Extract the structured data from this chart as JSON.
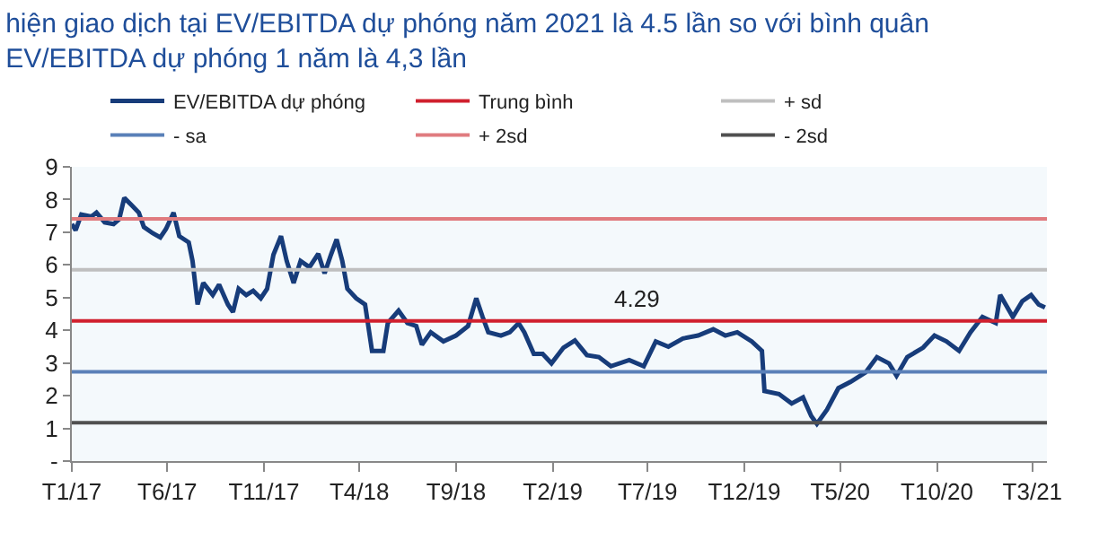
{
  "chart_data": {
    "type": "line",
    "title": "hiện giao dịch tại EV/EBITDA dự phóng năm 2021 là 4.5 lần so với bình quân\nEV/EBITDA dự phóng 1 năm là 4,3 lần",
    "xlim": [
      "2017-01-01",
      "2021-03-24"
    ],
    "xticks": [
      {
        "value": "2017-01-01",
        "label": "T1/17"
      },
      {
        "value": "2017-06-01",
        "label": "T6/17"
      },
      {
        "value": "2017-11-01",
        "label": "T11/17"
      },
      {
        "value": "2018-04-01",
        "label": "T4/18"
      },
      {
        "value": "2018-09-01",
        "label": "T9/18"
      },
      {
        "value": "2019-02-01",
        "label": "T2/19"
      },
      {
        "value": "2019-07-01",
        "label": "T7/19"
      },
      {
        "value": "2019-12-01",
        "label": "T12/19"
      },
      {
        "value": "2020-05-01",
        "label": "T5/20"
      },
      {
        "value": "2020-10-01",
        "label": "T10/20"
      },
      {
        "value": "2021-03-01",
        "label": "T3/21"
      }
    ],
    "ylim": [
      0,
      9
    ],
    "yticks": [
      {
        "value": 0,
        "label": "-"
      },
      1,
      2,
      3,
      4,
      5,
      6,
      7,
      8,
      9
    ],
    "grid": false,
    "legend": "top",
    "marker": "none",
    "line_style": "solid",
    "annotations": [
      {
        "text": "4.29",
        "x": "2019-06-15",
        "y": 4.29
      }
    ],
    "series": [
      {
        "name": "EV/EBITDA dự phóng",
        "color": "#173c7a",
        "x": [
          "2017-01-01",
          "2017-01-07",
          "2017-01-16",
          "2017-02-01",
          "2017-02-09",
          "2017-02-22",
          "2017-03-08",
          "2017-03-17",
          "2017-03-25",
          "2017-04-06",
          "2017-04-17",
          "2017-04-25",
          "2017-05-09",
          "2017-05-21",
          "2017-05-30",
          "2017-06-11",
          "2017-06-20",
          "2017-07-05",
          "2017-07-11",
          "2017-07-19",
          "2017-07-28",
          "2017-08-12",
          "2017-08-22",
          "2017-09-05",
          "2017-09-13",
          "2017-09-22",
          "2017-10-04",
          "2017-10-15",
          "2017-10-27",
          "2017-11-06",
          "2017-11-16",
          "2017-11-28",
          "2017-12-07",
          "2017-12-18",
          "2017-12-29",
          "2018-01-12",
          "2018-01-26",
          "2018-02-05",
          "2018-02-15",
          "2018-02-24",
          "2018-03-05",
          "2018-03-13",
          "2018-03-27",
          "2018-04-10",
          "2018-04-21",
          "2018-05-09",
          "2018-05-16",
          "2018-06-02",
          "2018-06-16",
          "2018-06-30",
          "2018-07-09",
          "2018-07-23",
          "2018-08-12",
          "2018-09-01",
          "2018-09-20",
          "2018-10-03",
          "2018-10-13",
          "2018-10-22",
          "2018-11-11",
          "2018-11-25",
          "2018-12-09",
          "2018-12-18",
          "2019-01-02",
          "2019-01-16",
          "2019-01-30",
          "2019-02-18",
          "2019-03-08",
          "2019-03-27",
          "2019-04-15",
          "2019-05-04",
          "2019-06-02",
          "2019-06-25",
          "2019-07-14",
          "2019-08-03",
          "2019-08-26",
          "2019-09-19",
          "2019-10-13",
          "2019-11-01",
          "2019-11-20",
          "2019-12-13",
          "2019-12-29",
          "2020-01-02",
          "2020-01-25",
          "2020-02-14",
          "2020-03-03",
          "2020-03-16",
          "2020-03-25",
          "2020-04-10",
          "2020-04-28",
          "2020-05-17",
          "2020-06-10",
          "2020-06-28",
          "2020-07-17",
          "2020-07-29",
          "2020-08-15",
          "2020-09-09",
          "2020-09-27",
          "2020-10-16",
          "2020-11-05",
          "2020-11-23",
          "2020-12-12",
          "2021-01-02",
          "2021-01-09",
          "2021-01-29",
          "2021-02-13",
          "2021-02-27",
          "2021-03-11",
          "2021-03-21"
        ],
        "values": [
          7.25,
          7.06,
          7.54,
          7.48,
          7.6,
          7.3,
          7.25,
          7.4,
          8.05,
          7.82,
          7.6,
          7.16,
          6.97,
          6.84,
          7.1,
          7.6,
          6.88,
          6.69,
          6.12,
          4.79,
          5.45,
          5.08,
          5.4,
          4.79,
          4.56,
          5.27,
          5.08,
          5.21,
          4.98,
          5.27,
          6.31,
          6.88,
          6.12,
          5.45,
          6.12,
          5.93,
          6.34,
          5.74,
          6.31,
          6.78,
          6.12,
          5.27,
          4.98,
          4.79,
          3.37,
          3.37,
          4.22,
          4.6,
          4.22,
          4.13,
          3.56,
          3.94,
          3.66,
          3.84,
          4.13,
          4.98,
          4.41,
          3.94,
          3.84,
          3.94,
          4.22,
          3.94,
          3.28,
          3.28,
          2.99,
          3.47,
          3.69,
          3.24,
          3.18,
          2.9,
          3.09,
          2.9,
          3.66,
          3.5,
          3.75,
          3.84,
          4.03,
          3.84,
          3.94,
          3.66,
          3.37,
          2.14,
          2.05,
          1.76,
          1.95,
          1.38,
          1.14,
          1.57,
          2.23,
          2.42,
          2.71,
          3.18,
          2.99,
          2.61,
          3.18,
          3.47,
          3.84,
          3.66,
          3.37,
          3.94,
          4.41,
          4.22,
          5.08,
          4.41,
          4.89,
          5.08,
          4.79,
          4.7
        ]
      },
      {
        "name": "Trung bình",
        "color": "#d0202e",
        "x": [
          "2017-01-01",
          "2021-03-24"
        ],
        "values": [
          4.29,
          4.29
        ]
      },
      {
        "name": "+ sd",
        "color": "#bfbfbf",
        "x": [
          "2017-01-01",
          "2021-03-24"
        ],
        "values": [
          5.85,
          5.85
        ]
      },
      {
        "name": "- sa",
        "color": "#5a80b8",
        "x": [
          "2017-01-01",
          "2021-03-24"
        ],
        "values": [
          2.73,
          2.73
        ]
      },
      {
        "name": "+ 2sd",
        "color": "#e07b7f",
        "x": [
          "2017-01-01",
          "2021-03-24"
        ],
        "values": [
          7.41,
          7.41
        ]
      },
      {
        "name": "- 2sd",
        "color": "#505050",
        "x": [
          "2017-01-01",
          "2021-03-24"
        ],
        "values": [
          1.17,
          1.17
        ]
      }
    ]
  }
}
